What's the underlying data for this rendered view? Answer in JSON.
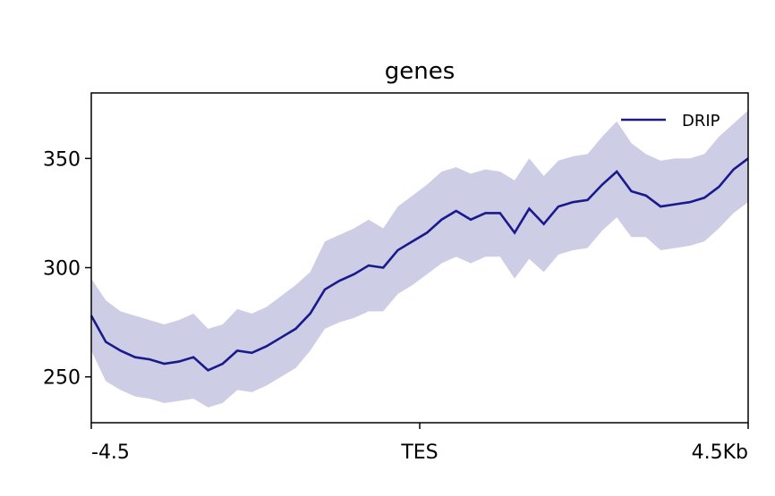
{
  "chart_data": {
    "type": "line",
    "title": "genes",
    "x": [
      -4.5,
      -4.3,
      -4.1,
      -3.9,
      -3.7,
      -3.5,
      -3.3,
      -3.1,
      -2.9,
      -2.7,
      -2.5,
      -2.3,
      -2.1,
      -1.9,
      -1.7,
      -1.5,
      -1.3,
      -1.1,
      -0.9,
      -0.7,
      -0.5,
      -0.3,
      -0.1,
      0.1,
      0.3,
      0.5,
      0.7,
      0.9,
      1.1,
      1.3,
      1.5,
      1.7,
      1.9,
      2.1,
      2.3,
      2.5,
      2.7,
      2.9,
      3.1,
      3.3,
      3.5,
      3.7,
      3.9,
      4.1,
      4.3,
      4.5
    ],
    "series": [
      {
        "name": "DRIP",
        "color": "#1a1a8c",
        "band_color": "#cdcde6",
        "values": [
          278,
          266,
          262,
          259,
          258,
          256,
          257,
          259,
          253,
          256,
          262,
          261,
          264,
          268,
          272,
          279,
          290,
          294,
          297,
          301,
          300,
          308,
          312,
          316,
          322,
          326,
          322,
          325,
          325,
          316,
          327,
          320,
          328,
          330,
          331,
          338,
          344,
          335,
          333,
          328,
          329,
          330,
          332,
          337,
          345,
          350
        ],
        "upper": [
          295,
          285,
          280,
          278,
          276,
          274,
          276,
          279,
          272,
          274,
          281,
          279,
          282,
          287,
          292,
          298,
          312,
          315,
          318,
          322,
          318,
          328,
          333,
          338,
          344,
          346,
          343,
          345,
          344,
          340,
          350,
          342,
          349,
          351,
          352,
          360,
          367,
          357,
          352,
          349,
          350,
          350,
          352,
          360,
          366,
          372
        ],
        "lower": [
          262,
          248,
          244,
          241,
          240,
          238,
          239,
          240,
          236,
          238,
          244,
          243,
          246,
          250,
          254,
          262,
          272,
          275,
          277,
          280,
          280,
          288,
          292,
          297,
          302,
          305,
          302,
          305,
          305,
          295,
          304,
          298,
          306,
          308,
          309,
          317,
          323,
          314,
          314,
          308,
          309,
          310,
          312,
          318,
          325,
          330
        ]
      }
    ],
    "xlim": [
      -4.5,
      4.5
    ],
    "xticks": [
      -4.5,
      {
        "value": 0,
        "label": "TES"
      },
      {
        "value": 4.5,
        "label": "4.5Kb"
      }
    ],
    "ylim": [
      229,
      380
    ],
    "yticks": [
      250,
      300,
      350
    ],
    "legend": "upper right"
  }
}
